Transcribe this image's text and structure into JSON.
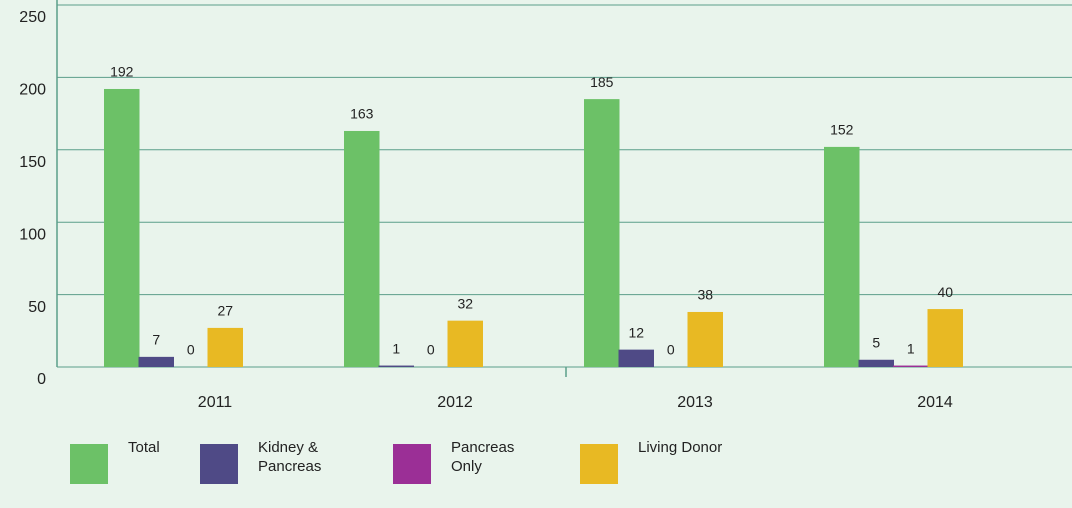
{
  "chart_data": {
    "type": "bar",
    "categories": [
      "2011",
      "2012",
      "2013",
      "2014"
    ],
    "series": [
      {
        "name": "Total",
        "color": "#6cc167",
        "values": [
          192,
          163,
          185,
          152
        ]
      },
      {
        "name": "Kidney & Pancreas",
        "color": "#4f4a86",
        "values": [
          7,
          1,
          12,
          5
        ]
      },
      {
        "name": "Pancreas Only",
        "color": "#9b2f96",
        "values": [
          0,
          0,
          0,
          1
        ]
      },
      {
        "name": "Living Donor",
        "color": "#e8b923",
        "values": [
          27,
          32,
          38,
          40
        ]
      }
    ],
    "ylim": [
      0,
      250
    ],
    "yticks": [
      0,
      50,
      100,
      150,
      200,
      250
    ],
    "grid": true,
    "legend": "bottom"
  }
}
